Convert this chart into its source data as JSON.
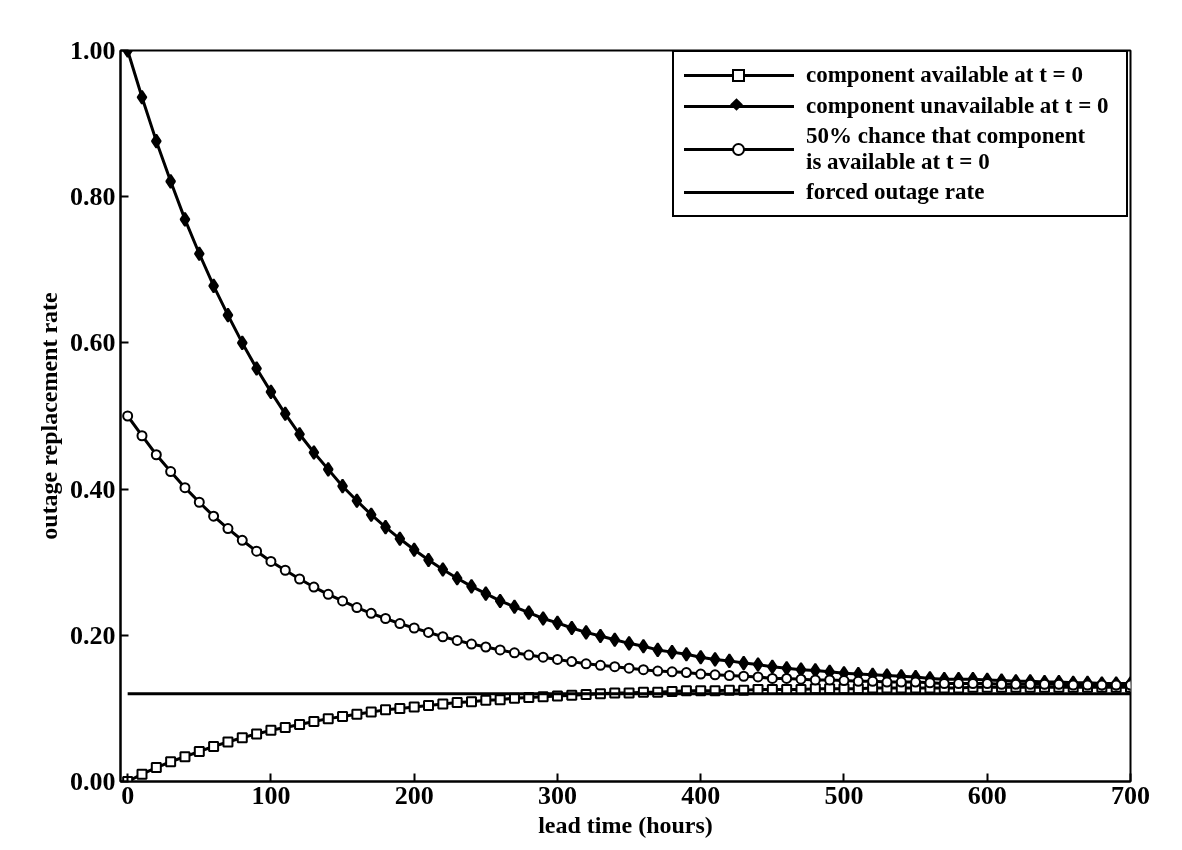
{
  "chart_data": {
    "type": "line",
    "xlabel": "lead time (hours)",
    "ylabel": "outage replacement rate",
    "x": [
      0,
      10,
      20,
      30,
      40,
      50,
      60,
      70,
      80,
      90,
      100,
      110,
      120,
      130,
      140,
      150,
      160,
      170,
      180,
      190,
      200,
      210,
      220,
      230,
      240,
      250,
      260,
      270,
      280,
      290,
      300,
      310,
      320,
      330,
      340,
      350,
      360,
      370,
      380,
      390,
      400,
      410,
      420,
      430,
      440,
      450,
      460,
      470,
      480,
      490,
      500,
      510,
      520,
      530,
      540,
      550,
      560,
      570,
      580,
      590,
      600,
      610,
      620,
      630,
      640,
      650,
      660,
      670,
      680,
      690,
      700
    ],
    "series": [
      {
        "name": "component available at t = 0",
        "color": "#000000",
        "marker": "square",
        "values": [
          0,
          0.01,
          0.019,
          0.027,
          0.034,
          0.041,
          0.048,
          0.054,
          0.06,
          0.065,
          0.07,
          0.074,
          0.078,
          0.082,
          0.086,
          0.089,
          0.092,
          0.095,
          0.098,
          0.1,
          0.102,
          0.104,
          0.106,
          0.108,
          0.109,
          0.111,
          0.112,
          0.114,
          0.115,
          0.116,
          0.117,
          0.118,
          0.119,
          0.12,
          0.121,
          0.121,
          0.122,
          0.122,
          0.123,
          0.124,
          0.124,
          0.124,
          0.125,
          0.125,
          0.126,
          0.126,
          0.126,
          0.126,
          0.127,
          0.127,
          0.127,
          0.127,
          0.128,
          0.128,
          0.128,
          0.128,
          0.128,
          0.128,
          0.128,
          0.129,
          0.129,
          0.129,
          0.129,
          0.129,
          0.129,
          0.129,
          0.129,
          0.129,
          0.129,
          0.129,
          0.129
        ]
      },
      {
        "name": "component unavailable at t = 0",
        "color": "#000000",
        "marker": "diamond",
        "values": [
          1.0,
          0.936,
          0.876,
          0.821,
          0.769,
          0.722,
          0.678,
          0.638,
          0.6,
          0.565,
          0.533,
          0.503,
          0.475,
          0.45,
          0.427,
          0.404,
          0.384,
          0.365,
          0.348,
          0.332,
          0.317,
          0.303,
          0.29,
          0.278,
          0.267,
          0.257,
          0.247,
          0.239,
          0.231,
          0.223,
          0.217,
          0.21,
          0.204,
          0.199,
          0.194,
          0.189,
          0.185,
          0.18,
          0.177,
          0.174,
          0.17,
          0.167,
          0.165,
          0.162,
          0.16,
          0.157,
          0.155,
          0.153,
          0.152,
          0.15,
          0.148,
          0.147,
          0.146,
          0.145,
          0.144,
          0.143,
          0.141,
          0.14,
          0.14,
          0.14,
          0.139,
          0.138,
          0.137,
          0.137,
          0.136,
          0.136,
          0.135,
          0.135,
          0.134,
          0.134,
          0.134
        ]
      },
      {
        "name": "50% chance that component\nis available at t = 0",
        "color": "#000000",
        "marker": "circle",
        "values": [
          0.5,
          0.473,
          0.447,
          0.424,
          0.402,
          0.382,
          0.363,
          0.346,
          0.33,
          0.315,
          0.301,
          0.289,
          0.277,
          0.266,
          0.256,
          0.247,
          0.238,
          0.23,
          0.223,
          0.216,
          0.21,
          0.204,
          0.198,
          0.193,
          0.188,
          0.184,
          0.18,
          0.176,
          0.173,
          0.17,
          0.167,
          0.164,
          0.161,
          0.159,
          0.157,
          0.155,
          0.153,
          0.151,
          0.15,
          0.149,
          0.147,
          0.146,
          0.145,
          0.144,
          0.143,
          0.141,
          0.141,
          0.14,
          0.139,
          0.139,
          0.138,
          0.137,
          0.137,
          0.136,
          0.136,
          0.136,
          0.135,
          0.134,
          0.134,
          0.134,
          0.134,
          0.133,
          0.133,
          0.133,
          0.133,
          0.133,
          0.132,
          0.132,
          0.132,
          0.132,
          0.132
        ]
      },
      {
        "name": "forced outage rate",
        "color": "#000000",
        "marker": "none",
        "x": [
          0,
          700
        ],
        "values": [
          0.12,
          0.12
        ]
      }
    ],
    "xlim": [
      -5,
      700
    ],
    "xticks": [
      0,
      100,
      200,
      300,
      400,
      500,
      600,
      700
    ],
    "ylim": [
      0,
      1
    ],
    "yticks": [
      {
        "value": 0,
        "label": "0.00"
      },
      {
        "value": 0.2,
        "label": "0.20"
      },
      {
        "value": 0.4,
        "label": "0.40"
      },
      {
        "value": 0.6,
        "label": "0.60"
      },
      {
        "value": 0.8,
        "label": "0.80"
      },
      {
        "value": 1,
        "label": "1.00"
      }
    ],
    "grid": false,
    "legend": "top right",
    "line_style": "solid"
  }
}
